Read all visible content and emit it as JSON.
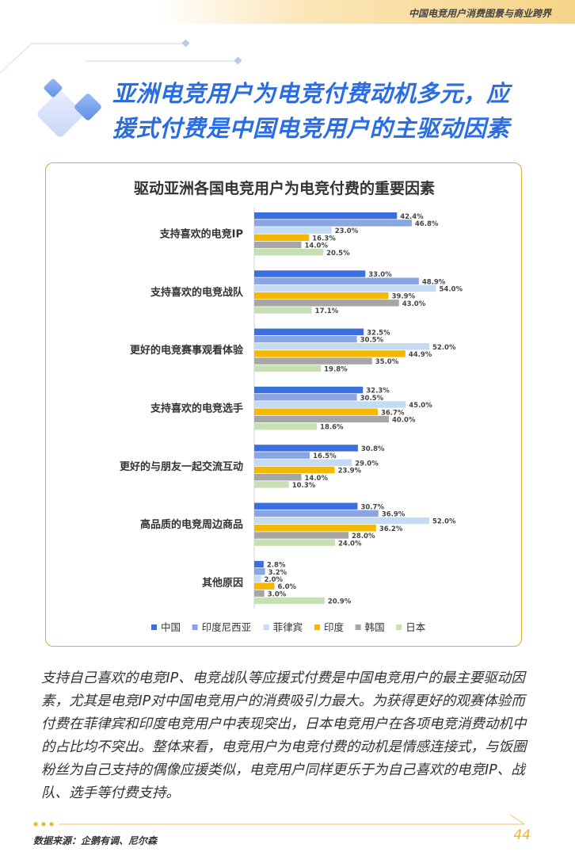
{
  "header": {
    "title": "中国电竞用户消费图景与商业跨界"
  },
  "main_title": {
    "line1": "亚洲电竞用户为电竞付费动机多元，应",
    "line2": "援式付费是中国电竞用户的主驱动因素"
  },
  "chart_data": {
    "type": "bar",
    "orientation": "horizontal",
    "title": "驱动亚洲各国电竞用户为电竞付费的重要因素",
    "categories": [
      "支持喜欢的电竞IP",
      "支持喜欢的电竞战队",
      "更好的电竞赛事观看体验",
      "支持喜欢的电竞选手",
      "更好的与朋友一起交流互动",
      "高品质的电竞周边商品",
      "其他原因"
    ],
    "series": [
      {
        "name": "中国",
        "color": "#3b6fe0",
        "values": [
          42.4,
          33.0,
          32.5,
          32.3,
          30.8,
          30.7,
          2.8
        ]
      },
      {
        "name": "印度尼西亚",
        "color": "#8aa5e3",
        "values": [
          46.8,
          48.9,
          30.5,
          30.5,
          16.5,
          36.9,
          3.2
        ]
      },
      {
        "name": "菲律宾",
        "color": "#c5daf3",
        "values": [
          23.0,
          54.0,
          52.0,
          45.0,
          29.0,
          52.0,
          2.0
        ]
      },
      {
        "name": "印度",
        "color": "#f5b800",
        "values": [
          16.3,
          39.9,
          44.9,
          36.7,
          23.9,
          36.2,
          6.0
        ]
      },
      {
        "name": "韩国",
        "color": "#a6a6a6",
        "values": [
          14.0,
          43.0,
          35.0,
          40.0,
          14.0,
          28.0,
          3.0
        ]
      },
      {
        "name": "日本",
        "color": "#c6e0b4",
        "values": [
          20.5,
          17.1,
          19.8,
          18.6,
          10.3,
          24.0,
          20.9
        ]
      }
    ],
    "value_suffix": "%",
    "legend_position": "bottom",
    "grid": false
  },
  "body_text": "支持自己喜欢的电竞IP、电竞战队等应援式付费是中国电竞用户的最主要驱动因素，尤其是电竞IP对中国电竞用户的消费吸引力最大。为获得更好的观赛体验而付费在菲律宾和印度电竞用户中表现突出，日本电竞用户在各项电竞消费动机中的占比均不突出。整体来看，电竞用户为电竞付费的动机是情感连接式，与饭圈粉丝为自己支持的偶像应援类似，电竞用户同样更乐于为自己喜欢的电竞IP、战队、选手等付费支持。",
  "footer": {
    "source": "数据来源：企鹅有调、尼尔森",
    "page_number": "44"
  },
  "colors": {
    "accent": "#2b6de0",
    "gold": "#f0b429",
    "card_border": "#e0a83a"
  }
}
